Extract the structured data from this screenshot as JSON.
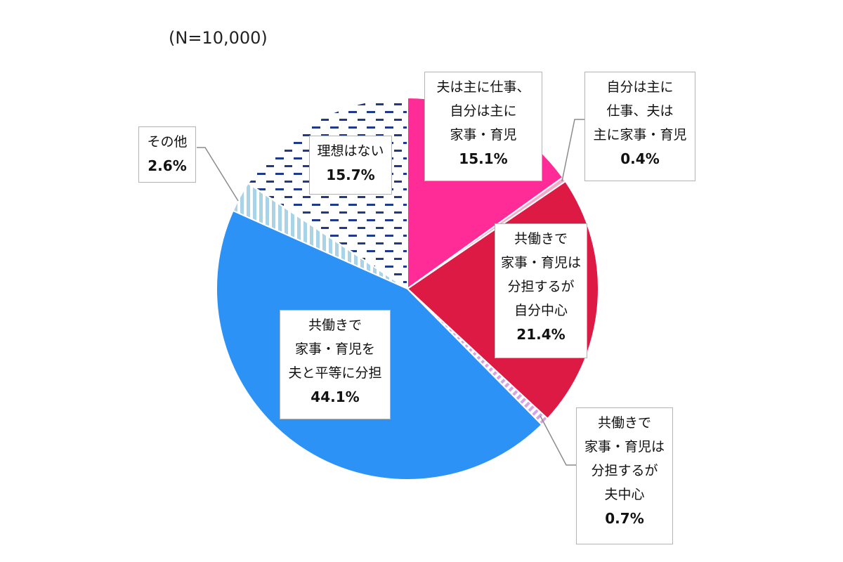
{
  "note": "(N=10,000)",
  "colors": {
    "husband_work": "#ff2b96",
    "self_work": "#f4aaca",
    "dual_self": "#dc1a44",
    "dual_husband": "#d7a3e6",
    "dual_equal": "#2d92f5",
    "other": "#a9d4e7",
    "no_ideal": "#1f3a8a"
  },
  "chart_data": {
    "type": "pie",
    "note": "(N=10,000)",
    "start": "12 o'clock, clockwise",
    "slices": [
      {
        "lines": [
          "夫は主に仕事、",
          "自分は主に",
          "家事・育児"
        ],
        "pct": "15.1%",
        "value": 15.1,
        "color": "#ff2b96",
        "pattern": "solid"
      },
      {
        "lines": [
          "自分は主に",
          "仕事、夫は",
          "主に家事・育児"
        ],
        "pct": "0.4%",
        "value": 0.4,
        "color": "#f4aaca",
        "pattern": "solid"
      },
      {
        "lines": [
          "共働きで",
          "家事・育児は",
          "分担するが",
          "自分中心"
        ],
        "pct": "21.4%",
        "value": 21.4,
        "color": "#dc1a44",
        "pattern": "solid"
      },
      {
        "lines": [
          "共働きで",
          "家事・育児は",
          "分担するが",
          "夫中心"
        ],
        "pct": "0.7%",
        "value": 0.7,
        "color": "#d7a3e6",
        "pattern": "diagonal"
      },
      {
        "lines": [
          "共働きで",
          "家事・育児を",
          "夫と平等に分担"
        ],
        "pct": "44.1%",
        "value": 44.1,
        "color": "#2d92f5",
        "pattern": "solid"
      },
      {
        "lines": [
          "その他"
        ],
        "pct": "2.6%",
        "value": 2.6,
        "color": "#a9d4e7",
        "pattern": "vertical"
      },
      {
        "lines": [
          "理想はない"
        ],
        "pct": "15.7%",
        "value": 15.7,
        "color": "#1f3a8a",
        "pattern": "dashes"
      }
    ]
  }
}
